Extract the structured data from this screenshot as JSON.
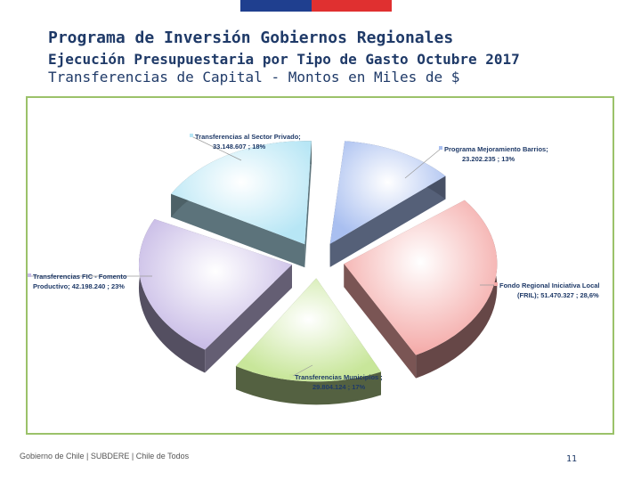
{
  "header": {
    "title": "Programa de Inversión Gobiernos Regionales",
    "subtitle": "Ejecución Presupuestaria por Tipo de Gasto Octubre 2017",
    "caption": "Transferencias de Capital - Montos en Miles de $"
  },
  "colors": {
    "brand_blue": "#1f3f8f",
    "brand_red": "#e03030",
    "text_navy": "#1f3a68",
    "frame_green": "#9bc26a"
  },
  "chart_data": {
    "type": "pie",
    "style": "3d-exploded",
    "slices": [
      {
        "name": "Programa Mejoramiento Barrios",
        "value": 23202235,
        "percent": 13,
        "label_line1": "Programa Mejoramiento Barrios;",
        "label_line2": "23.202.235 ; 13%",
        "color": "#a9bff0"
      },
      {
        "name": "Fondo Regional Iniciativa Local (FRIL)",
        "value": 51470327,
        "percent": 28.6,
        "label_line1": "Fondo Regional Iniciativa Local",
        "label_line2": "(FRIL); 51.470.327 ; 28,6%",
        "color": "#f4aaa8"
      },
      {
        "name": "Transferencias Municipios",
        "value": 29804124,
        "percent": 17,
        "label_line1": "Transferencias Municipios ;",
        "label_line2": "29.804.124 ; 17%",
        "color": "#c8e69a"
      },
      {
        "name": "Transferencias FIC - Fomento Productivo",
        "value": 42198240,
        "percent": 23,
        "label_line1": "Transferencias FIC - Fomento",
        "label_line2": "Productivo; 42.198.240 ; 23%",
        "color": "#c8bbe6"
      },
      {
        "name": "Transferencias al Sector Privado",
        "value": 33148607,
        "percent": 18,
        "label_line1": "Transferencias al Sector Privado;",
        "label_line2": "33.148.607 ; 18%",
        "color": "#b7e6f5"
      }
    ]
  },
  "footer": {
    "left_text": "Gobierno de Chile | SUBDERE | Chile de Todos",
    "page_number": "11"
  }
}
